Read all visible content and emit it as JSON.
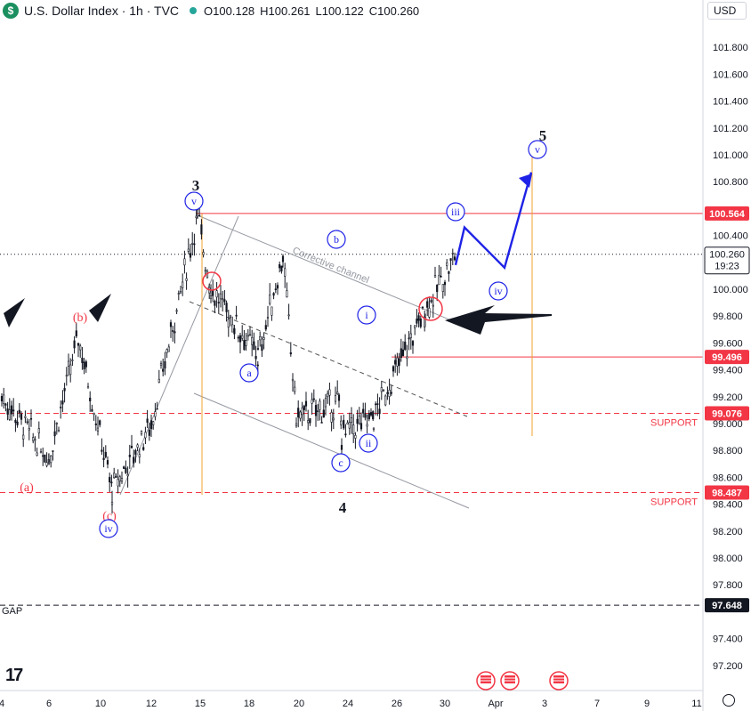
{
  "header": {
    "symbol_title": "U.S. Dollar Index · 1h · TVC",
    "logo_glyph": "$",
    "ohlc": [
      {
        "k": "O",
        "v": "100.128"
      },
      {
        "k": "H",
        "v": "100.261"
      },
      {
        "k": "L",
        "v": "100.122"
      },
      {
        "k": "C",
        "v": "100.260"
      }
    ],
    "currency": "USD"
  },
  "chart_data": {
    "type": "line",
    "title": "U.S. Dollar Index",
    "timeframe": "1h",
    "ylim": [
      97.05,
      101.95
    ],
    "y_ticks": [
      "101.800",
      "101.600",
      "101.400",
      "101.200",
      "101.000",
      "100.800",
      "100.400",
      "100.000",
      "99.800",
      "99.600",
      "99.400",
      "99.200",
      "99.000",
      "98.800",
      "98.600",
      "98.400",
      "98.200",
      "98.000",
      "97.800",
      "97.400",
      "97.200"
    ],
    "x_ticks": [
      "4",
      "6",
      "10",
      "12",
      "15",
      "18",
      "20",
      "24",
      "26",
      "30",
      "Apr",
      "3",
      "7",
      "9",
      "11"
    ],
    "price_series": {
      "x": [
        "4",
        "6",
        "9",
        "10",
        "12",
        "15",
        "15",
        "18",
        "20",
        "20",
        "24",
        "24",
        "26",
        "30",
        "30"
      ],
      "y": [
        99.2,
        98.75,
        99.65,
        98.5,
        99.0,
        100.55,
        100.0,
        99.5,
        100.25,
        99.05,
        99.15,
        98.92,
        99.05,
        99.85,
        100.26
      ]
    },
    "projection": {
      "name": "forecast",
      "x": [
        "30",
        "30",
        "3"
      ],
      "y": [
        100.46,
        100.18,
        100.87
      ]
    },
    "price_levels": [
      {
        "value": "100.564",
        "style": "solid",
        "color": "#f23645"
      },
      {
        "value": "99.496",
        "style": "solid",
        "color": "#f23645"
      },
      {
        "value": "99.076",
        "style": "dashed",
        "color": "#f23645",
        "note": "SUPPORT"
      },
      {
        "value": "98.487",
        "style": "dashed",
        "color": "#f23645",
        "note": "SUPPORT"
      },
      {
        "value": "97.648",
        "style": "dashed",
        "color": "#131722",
        "note": "GAP"
      }
    ],
    "last_price": {
      "value": "100.260",
      "countdown": "19:23"
    },
    "annotations": {
      "channel_label": "Corrective channel",
      "wave_labels": [
        "3",
        "5",
        "4",
        "v",
        "iii",
        "iv",
        "v",
        "b",
        "i",
        "a",
        "ii",
        "c",
        "(b)",
        "(a)",
        "(c)",
        "iv"
      ]
    },
    "colors": {
      "price": "#131722",
      "level": "#f23645",
      "projection": "#1e22e6",
      "wave_circle": "#1e22e6",
      "fib": "#f2a230",
      "channel": "#9598a1"
    }
  }
}
